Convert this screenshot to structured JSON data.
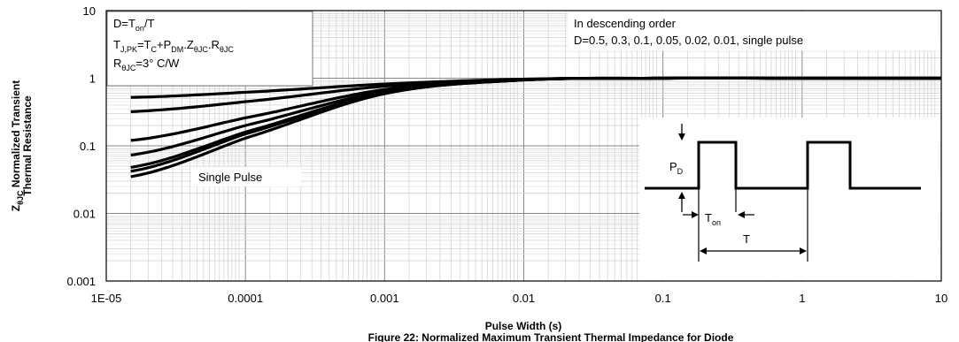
{
  "chart_data": {
    "type": "line",
    "x_scale": "log",
    "y_scale": "log",
    "xlim": [
      1e-05,
      10
    ],
    "ylim": [
      0.001,
      10
    ],
    "grid": true,
    "x_tick_labels": [
      "1E-05",
      "0.0001",
      "0.001",
      "0.01",
      "0.1",
      "1",
      "10"
    ],
    "x_tick_values": [
      1e-05,
      0.0001,
      0.001,
      0.01,
      0.1,
      1,
      10
    ],
    "y_tick_labels": [
      "0.001",
      "0.01",
      "0.1",
      "1",
      "10"
    ],
    "y_tick_values": [
      0.001,
      0.01,
      0.1,
      1,
      10
    ],
    "xlabel": "Pulse Width (s)",
    "ylabel_main": "Z",
    "ylabel_sub": "θJC",
    "ylabel_rest": " Normalized Transient",
    "ylabel_line2": "Thermal Resistance",
    "series": [
      {
        "name": "D=0.5",
        "x": [
          1.5e-05,
          0.0001,
          0.001,
          0.01,
          0.1,
          1,
          10
        ],
        "y": [
          0.52,
          0.62,
          0.82,
          0.97,
          1.0,
          1.0,
          1.0
        ]
      },
      {
        "name": "D=0.3",
        "x": [
          1.5e-05,
          0.0001,
          0.001,
          0.01,
          0.1,
          1,
          10
        ],
        "y": [
          0.32,
          0.45,
          0.76,
          0.96,
          1.0,
          1.0,
          1.0
        ]
      },
      {
        "name": "D=0.1",
        "x": [
          1.5e-05,
          0.0001,
          0.001,
          0.01,
          0.1,
          1,
          10
        ],
        "y": [
          0.12,
          0.26,
          0.68,
          0.95,
          1.0,
          1.0,
          1.0
        ]
      },
      {
        "name": "D=0.05",
        "x": [
          1.5e-05,
          0.0001,
          0.001,
          0.01,
          0.1,
          1,
          10
        ],
        "y": [
          0.073,
          0.2,
          0.64,
          0.95,
          1.0,
          1.0,
          1.0
        ]
      },
      {
        "name": "D=0.02",
        "x": [
          1.5e-05,
          0.0001,
          0.001,
          0.01,
          0.1,
          1,
          10
        ],
        "y": [
          0.048,
          0.16,
          0.61,
          0.94,
          1.0,
          1.0,
          1.0
        ]
      },
      {
        "name": "D=0.01",
        "x": [
          1.5e-05,
          0.0001,
          0.001,
          0.01,
          0.1,
          1,
          10
        ],
        "y": [
          0.042,
          0.15,
          0.6,
          0.94,
          1.0,
          1.0,
          1.0
        ]
      },
      {
        "name": "single pulse",
        "x": [
          1.5e-05,
          0.0001,
          0.001,
          0.01,
          0.1,
          1,
          10
        ],
        "y": [
          0.035,
          0.13,
          0.59,
          0.94,
          1.0,
          1.0,
          1.0
        ]
      }
    ],
    "annotation_top_left": {
      "line1_a": "D=T",
      "line1_sub": "on",
      "line1_b": "/T",
      "line2_a": "T",
      "line2_sub1": "J,PK",
      "line2_b": "=T",
      "line2_sub2": "C",
      "line2_c": "+P",
      "line2_sub3": "DM",
      "line2_d": ".Z",
      "line2_sub4": "θJC",
      "line2_e": ".R",
      "line2_sub5": "θJC",
      "line3_a": "R",
      "line3_sub": "θJC",
      "line3_b": "=3° C/W"
    },
    "annotation_top_right": {
      "line1": "In descending order",
      "line2": "D=0.5, 0.3, 0.1, 0.05, 0.02, 0.01, single pulse"
    },
    "single_pulse_label": "Single Pulse",
    "inset": {
      "pd_a": "P",
      "pd_sub": "D",
      "ton_a": "T",
      "ton_sub": "on",
      "t_label": "T"
    },
    "caption": "Figure 22: Normalized Maximum Transient Thermal Impedance for Diode"
  }
}
